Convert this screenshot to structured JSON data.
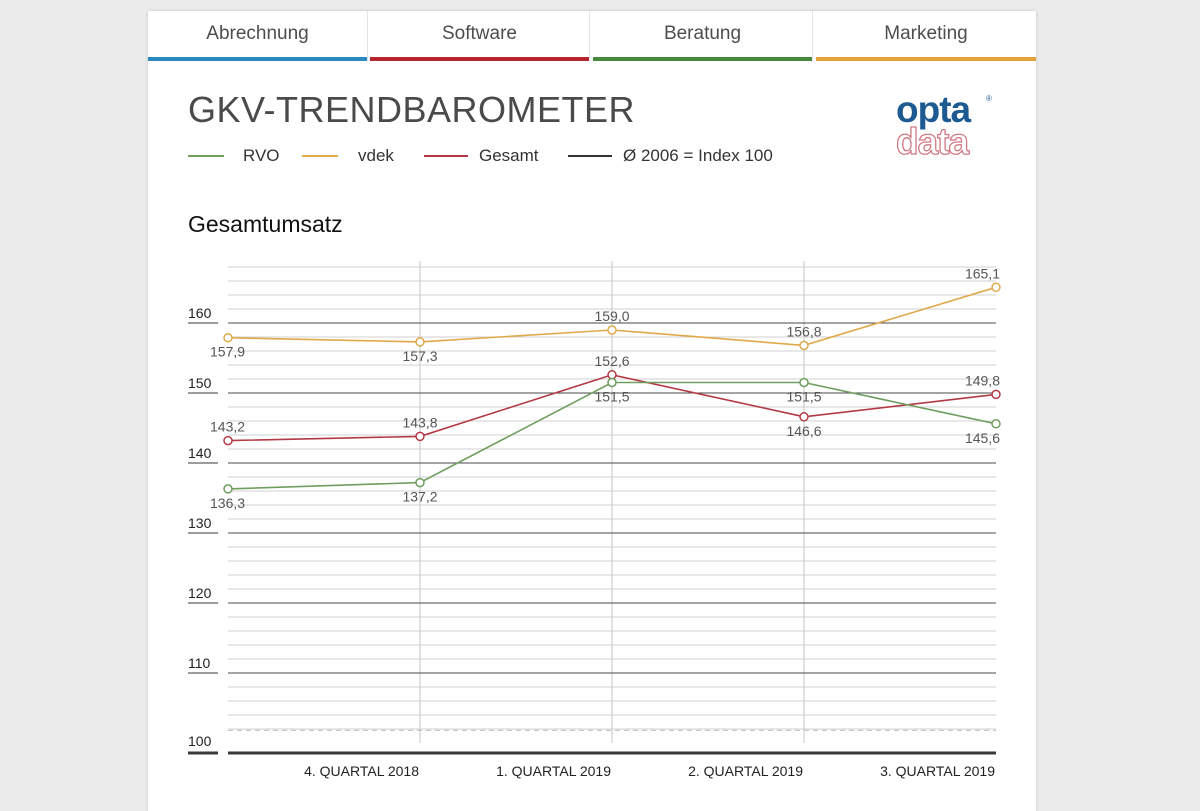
{
  "tabs": [
    {
      "label": "Abrechnung",
      "color": "#2a8ac0"
    },
    {
      "label": "Software",
      "color": "#b8252f"
    },
    {
      "label": "Beratung",
      "color": "#47873e"
    },
    {
      "label": "Marketing",
      "color": "#e3a33a"
    }
  ],
  "header": {
    "title": "GKV-TRENDBAROMETER"
  },
  "legend": [
    {
      "label": "RVO",
      "color": "#6f9e5f"
    },
    {
      "label": "vdek",
      "color": "#e0a94c"
    },
    {
      "label": "Gesamt",
      "color": "#b33a45"
    },
    {
      "label": "Ø 2006 = Index 100",
      "color": "#333333"
    }
  ],
  "logo": {
    "line1": "opta",
    "line2": "data",
    "mark": "®"
  },
  "chart_subtitle": "Gesamtumsatz",
  "chart_data": {
    "type": "line",
    "title": "Gesamtumsatz",
    "x": [
      "",
      "4. QUARTAL 2018",
      "1. QUARTAL 2019",
      "2. QUARTAL 2019",
      "3. QUARTAL 2019"
    ],
    "x_tick_labels": [
      "4. QUARTAL 2018",
      "1. QUARTAL 2019",
      "2. QUARTAL 2019",
      "3. QUARTAL 2019"
    ],
    "y_ticks": [
      100,
      110,
      120,
      130,
      140,
      150,
      160
    ],
    "ylim": [
      100,
      169
    ],
    "grid": true,
    "series": [
      {
        "name": "vdek",
        "color": "#e0a94c",
        "values": [
          157.9,
          157.3,
          159.0,
          156.8,
          165.1
        ],
        "labels": [
          "157,9",
          "157,3",
          "159,0",
          "156,8",
          "165,1"
        ],
        "label_pos": [
          "below",
          "below",
          "above",
          "above",
          "above"
        ]
      },
      {
        "name": "Gesamt",
        "color": "#b33a45",
        "values": [
          143.2,
          143.8,
          152.6,
          146.6,
          149.8
        ],
        "labels": [
          "143,2",
          "143,8",
          "152,6",
          "146,6",
          "149,8"
        ],
        "label_pos": [
          "above",
          "above",
          "above",
          "below",
          "above"
        ]
      },
      {
        "name": "RVO",
        "color": "#6f9e5f",
        "values": [
          136.3,
          137.2,
          151.5,
          151.5,
          145.6
        ],
        "labels": [
          "136,3",
          "137,2",
          "151,5",
          "151,5",
          "145,6"
        ],
        "label_pos": [
          "below",
          "below",
          "below",
          "below",
          "below"
        ]
      }
    ]
  }
}
